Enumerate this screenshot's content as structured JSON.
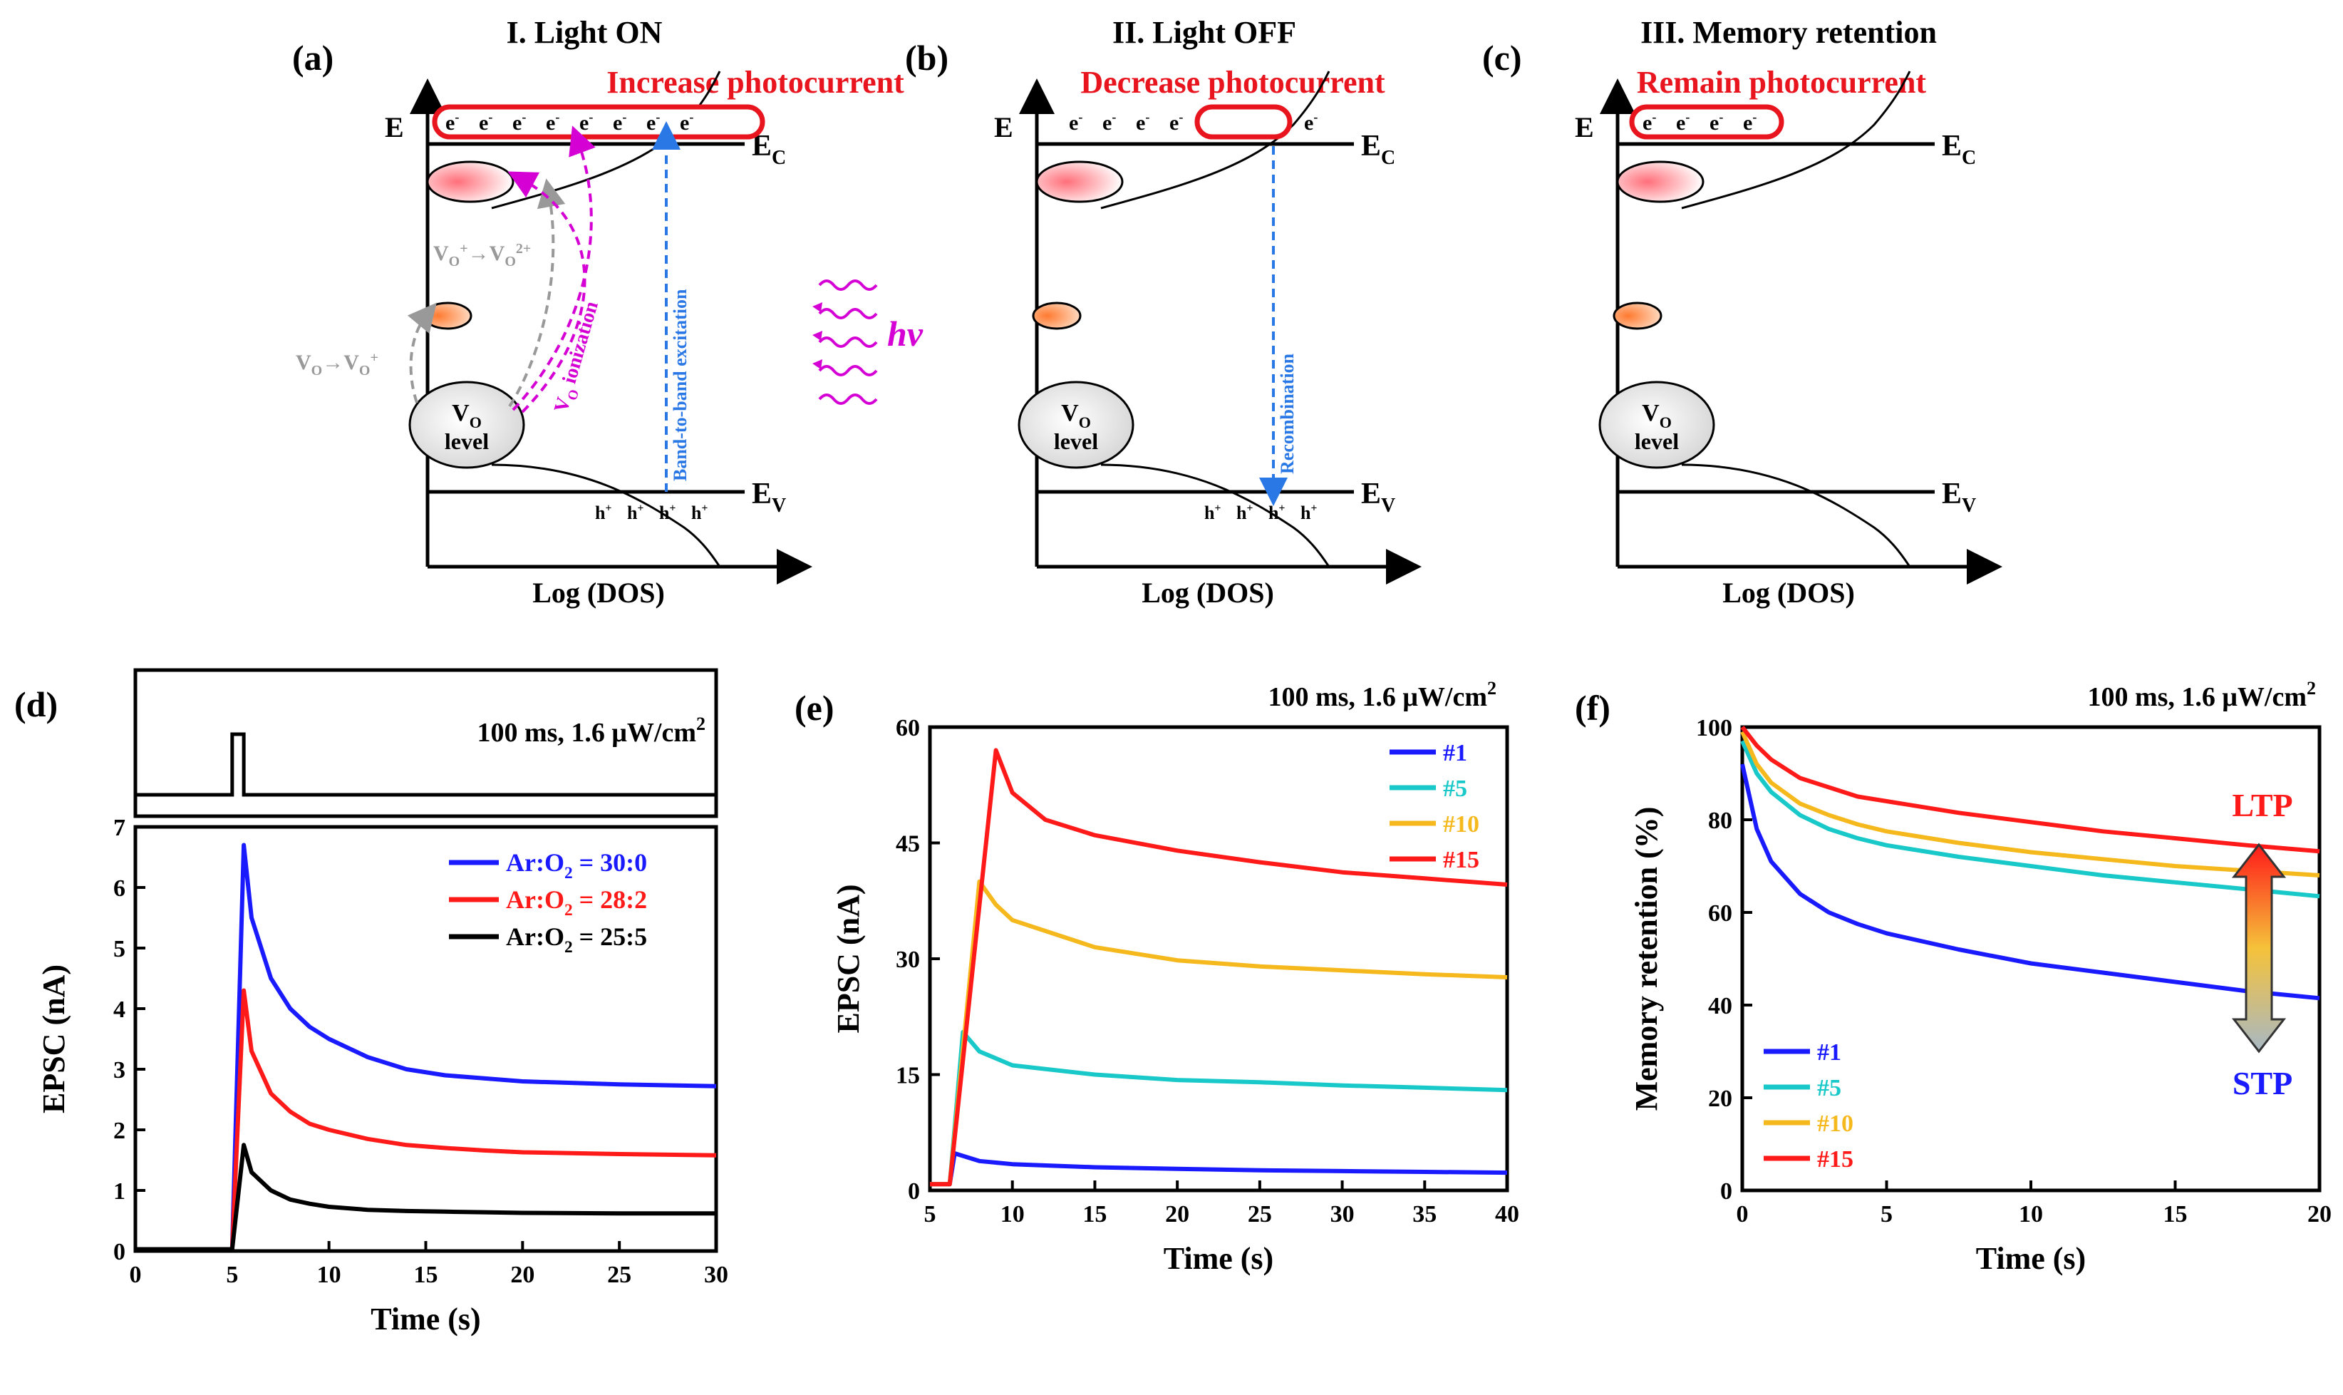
{
  "panels": {
    "a": {
      "label": "(a)",
      "title": "I. Light ON",
      "banner": "Increase photocurrent",
      "axis_e": "E",
      "ec": "E",
      "ec_sub": "C",
      "ev": "E",
      "ev_sub": "V",
      "xlabel": "Log (DOS)",
      "electron": "e",
      "electron_sup": "-",
      "hole": "h",
      "hole_sup": "+",
      "vo_label": "V",
      "vo_sub": "O",
      "level": "level",
      "trans1": {
        "a": "V",
        "a_sub": "O",
        "arrow": "→",
        "b": "V",
        "b_sub": "O",
        "b_sup": "+"
      },
      "trans2": {
        "a": "V",
        "a_sub": "O",
        "a_sup": "+",
        "arrow": "→",
        "b": "V",
        "b_sub": "O",
        "b_sup": "2+"
      },
      "ionization_v": "V",
      "ionization_sub": "O",
      "ionization": " ionization",
      "band_to_band": "Band-to-band excitation",
      "hv": "hv"
    },
    "b": {
      "label": "(b)",
      "title": "II. Light OFF",
      "banner": "Decrease photocurrent",
      "axis_e": "E",
      "ec": "E",
      "ec_sub": "C",
      "ev": "E",
      "ev_sub": "V",
      "xlabel": "Log (DOS)",
      "electron": "e",
      "electron_sup": "-",
      "hole": "h",
      "hole_sup": "+",
      "vo_label": "V",
      "vo_sub": "O",
      "level": "level",
      "recombination": "Recombination"
    },
    "c": {
      "label": "(c)",
      "title": "III. Memory retention",
      "banner": "Remain photocurrent",
      "axis_e": "E",
      "ec": "E",
      "ec_sub": "C",
      "ev": "E",
      "ev_sub": "V",
      "xlabel": "Log (DOS)",
      "electron": "e",
      "electron_sup": "-",
      "vo_label": "V",
      "vo_sub": "O",
      "level": "level"
    },
    "d": {
      "label": "(d)",
      "condition": "100 ms, 1.6 μW/cm",
      "condition_sup": "2"
    },
    "e": {
      "label": "(e)",
      "condition": "100 ms, 1.6 μW/cm",
      "condition_sup": "2"
    },
    "f": {
      "label": "(f)",
      "condition": "100 ms, 1.6 μW/cm",
      "condition_sup": "2",
      "ltp": "LTP",
      "stp": "STP"
    }
  },
  "colors": {
    "blue": "#1a1aff",
    "red": "#ff1a1a",
    "black": "#000000",
    "cyan": "#19c8c8",
    "gold": "#f5b91e",
    "magenta": "#d400d4",
    "gray": "#999999",
    "dash_blue": "#2a78e6",
    "banner_red": "#e8141e"
  },
  "chart_data": [
    {
      "panel": "d",
      "type": "line",
      "xlabel": "Time (s)",
      "ylabel": "EPSC (nA)",
      "xlim": [
        0,
        30
      ],
      "ylim": [
        0,
        7
      ],
      "xticks": [
        0,
        5,
        10,
        15,
        20,
        25,
        30
      ],
      "yticks": [
        0,
        1,
        2,
        3,
        4,
        5,
        6,
        7
      ],
      "pulse": {
        "start": 5,
        "end": 5.6
      },
      "legend": "top-right",
      "series": [
        {
          "name": "Ar:O",
          "name_sub": "2",
          "name_rest": " = 30:0",
          "color": "#1a1aff",
          "start": 5,
          "rise_end": 5.6,
          "peak": 6.7,
          "final": 2.7,
          "x": [
            5.6,
            6,
            7,
            8,
            9,
            10,
            12,
            14,
            16,
            18,
            20,
            25,
            30
          ],
          "y": [
            6.7,
            5.5,
            4.5,
            4.0,
            3.7,
            3.5,
            3.2,
            3.0,
            2.9,
            2.85,
            2.8,
            2.75,
            2.72
          ]
        },
        {
          "name": "Ar:O",
          "name_sub": "2",
          "name_rest": " = 28:2",
          "color": "#ff1a1a",
          "start": 5,
          "rise_end": 5.6,
          "peak": 4.3,
          "final": 1.6,
          "x": [
            5.6,
            6,
            7,
            8,
            9,
            10,
            12,
            14,
            16,
            18,
            20,
            25,
            30
          ],
          "y": [
            4.3,
            3.3,
            2.6,
            2.3,
            2.1,
            2.0,
            1.85,
            1.75,
            1.7,
            1.66,
            1.63,
            1.6,
            1.58
          ]
        },
        {
          "name": "Ar:O",
          "name_sub": "2",
          "name_rest": " = 25:5",
          "color": "#000000",
          "start": 5,
          "rise_end": 5.6,
          "peak": 1.75,
          "final": 0.62,
          "x": [
            5.6,
            6,
            7,
            8,
            9,
            10,
            12,
            14,
            16,
            18,
            20,
            25,
            30
          ],
          "y": [
            1.75,
            1.3,
            1.0,
            0.85,
            0.78,
            0.73,
            0.68,
            0.66,
            0.65,
            0.64,
            0.63,
            0.62,
            0.62
          ]
        }
      ]
    },
    {
      "panel": "e",
      "type": "line",
      "xlabel": "Time (s)",
      "ylabel": "EPSC (nA)",
      "xlim": [
        5,
        40
      ],
      "ylim": [
        0,
        60
      ],
      "xticks": [
        5,
        10,
        15,
        20,
        25,
        30,
        35,
        40
      ],
      "yticks": [
        0,
        15,
        30,
        45,
        60
      ],
      "legend": "top-right",
      "series": [
        {
          "name": "#1",
          "color": "#1a1aff",
          "start": 6.2,
          "peak_x": 6.5,
          "peak": 4.8,
          "x": [
            6.5,
            8,
            10,
            15,
            20,
            25,
            30,
            35,
            40
          ],
          "y": [
            4.8,
            3.8,
            3.4,
            3.0,
            2.8,
            2.6,
            2.5,
            2.4,
            2.3
          ]
        },
        {
          "name": "#5",
          "color": "#19c8c8",
          "start": 6.2,
          "peak_x": 7.0,
          "peak": 20.5,
          "x": [
            7,
            8,
            10,
            15,
            20,
            25,
            30,
            35,
            40
          ],
          "y": [
            20.5,
            18.0,
            16.2,
            15.0,
            14.3,
            14.0,
            13.6,
            13.3,
            13.0
          ]
        },
        {
          "name": "#10",
          "color": "#f5b91e",
          "start": 6.2,
          "peak_x": 8.0,
          "peak": 40.0,
          "x": [
            8,
            9,
            10,
            15,
            20,
            25,
            30,
            35,
            40
          ],
          "y": [
            40.0,
            37.0,
            35.0,
            31.5,
            29.8,
            29.0,
            28.5,
            28.0,
            27.6
          ]
        },
        {
          "name": "#15",
          "color": "#ff1a1a",
          "start": 6.2,
          "peak_x": 9.0,
          "peak": 57.0,
          "x": [
            9,
            10,
            12,
            15,
            20,
            25,
            30,
            35,
            40
          ],
          "y": [
            57.0,
            51.5,
            48.0,
            46.0,
            44.0,
            42.5,
            41.2,
            40.4,
            39.6
          ]
        }
      ]
    },
    {
      "panel": "f",
      "type": "line",
      "xlabel": "Time (s)",
      "ylabel": "Memory retention (%)",
      "xlim": [
        0,
        20
      ],
      "ylim": [
        0,
        100
      ],
      "xticks": [
        0,
        5,
        10,
        15,
        20
      ],
      "yticks": [
        0,
        20,
        40,
        60,
        80,
        100
      ],
      "legend": "bottom-left",
      "series": [
        {
          "name": "#1",
          "color": "#1a1aff",
          "x": [
            0,
            0.5,
            1,
            2,
            3,
            4,
            5,
            7.5,
            10,
            12.5,
            15,
            17.5,
            20
          ],
          "y": [
            92,
            78,
            71,
            64,
            60,
            57.5,
            55.5,
            52,
            49,
            47,
            45,
            43,
            41.5
          ]
        },
        {
          "name": "#5",
          "color": "#19c8c8",
          "x": [
            0,
            0.5,
            1,
            2,
            3,
            4,
            5,
            7.5,
            10,
            12.5,
            15,
            17.5,
            20
          ],
          "y": [
            97,
            90,
            86,
            81,
            78,
            76,
            74.5,
            72,
            70,
            68,
            66.5,
            65,
            63.5
          ]
        },
        {
          "name": "#10",
          "color": "#f5b91e",
          "x": [
            0,
            0.5,
            1,
            2,
            3,
            4,
            5,
            7.5,
            10,
            12.5,
            15,
            17.5,
            20
          ],
          "y": [
            99,
            92,
            88,
            83.5,
            81,
            79,
            77.5,
            75,
            73,
            71.5,
            70,
            69,
            68
          ]
        },
        {
          "name": "#15",
          "color": "#ff1a1a",
          "x": [
            0,
            0.5,
            1,
            2,
            3,
            4,
            5,
            7.5,
            10,
            12.5,
            15,
            17.5,
            20
          ],
          "y": [
            100,
            96,
            93,
            89,
            87,
            85,
            84,
            81.5,
            79.5,
            77.5,
            76,
            74.5,
            73.2
          ]
        }
      ]
    }
  ]
}
